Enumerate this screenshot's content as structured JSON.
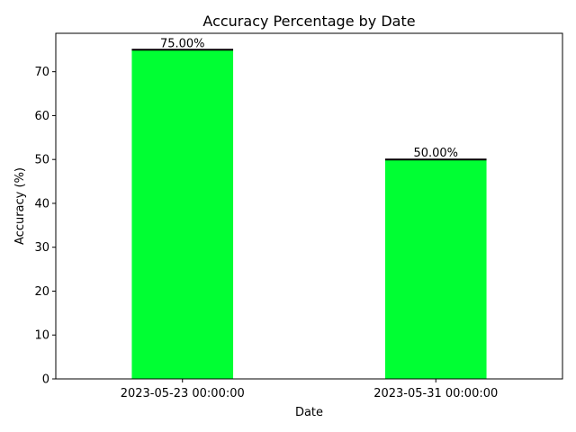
{
  "chart_data": {
    "type": "bar",
    "title": "Accuracy Percentage by Date",
    "xlabel": "Date",
    "ylabel": "Accuracy (%)",
    "categories": [
      "2023-05-23 00:00:00",
      "2023-05-31 00:00:00"
    ],
    "values": [
      75.0,
      50.0
    ],
    "data_labels": [
      "75.00%",
      "50.00%"
    ],
    "ylim": [
      0,
      78.75
    ],
    "yticks": [
      0,
      10,
      20,
      30,
      40,
      50,
      60,
      70
    ],
    "bar_color": "#00FF33",
    "grid": false,
    "legend": "none"
  }
}
